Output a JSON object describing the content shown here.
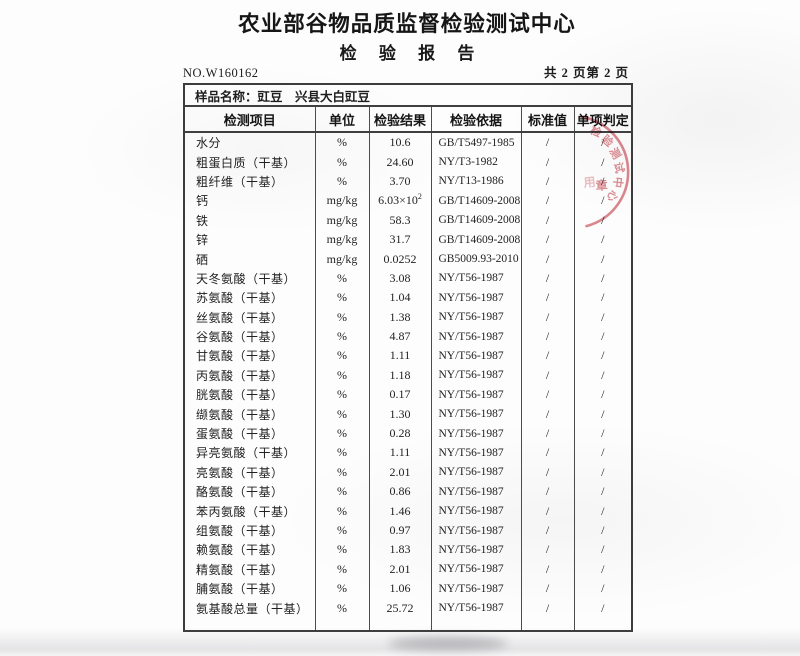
{
  "header": {
    "org_title": "农业部谷物品质监督检验测试中心",
    "report_title": "检 验 报 告",
    "report_no": "NO.W160162",
    "page_info": "共 2 页第 2 页"
  },
  "sample": {
    "line": "样品名称：豇豆　兴县大白豇豆"
  },
  "table": {
    "columns": [
      "检测项目",
      "单位",
      "检验结果",
      "检验依据",
      "标准值",
      "单项判定"
    ],
    "rows": [
      [
        "水分",
        "%",
        "10.6",
        "GB/T5497-1985",
        "/",
        "/"
      ],
      [
        "粗蛋白质（干基）",
        "%",
        "24.60",
        "NY/T3-1982",
        "/",
        "/"
      ],
      [
        "粗纤维（干基）",
        "%",
        "3.70",
        "NY/T13-1986",
        "/",
        "/"
      ],
      [
        "钙",
        "mg/kg",
        "6.03×10²",
        "GB/T14609-2008",
        "/",
        "/"
      ],
      [
        "铁",
        "mg/kg",
        "58.3",
        "GB/T14609-2008",
        "/",
        "/"
      ],
      [
        "锌",
        "mg/kg",
        "31.7",
        "GB/T14609-2008",
        "/",
        "/"
      ],
      [
        "硒",
        "mg/kg",
        "0.0252",
        "GB5009.93-2010",
        "/",
        "/"
      ],
      [
        "天冬氨酸（干基）",
        "%",
        "3.08",
        "NY/T56-1987",
        "/",
        "/"
      ],
      [
        "苏氨酸（干基）",
        "%",
        "1.04",
        "NY/T56-1987",
        "/",
        "/"
      ],
      [
        "丝氨酸（干基）",
        "%",
        "1.38",
        "NY/T56-1987",
        "/",
        "/"
      ],
      [
        "谷氨酸（干基）",
        "%",
        "4.87",
        "NY/T56-1987",
        "/",
        "/"
      ],
      [
        "甘氨酸（干基）",
        "%",
        "1.11",
        "NY/T56-1987",
        "/",
        "/"
      ],
      [
        "丙氨酸（干基）",
        "%",
        "1.18",
        "NY/T56-1987",
        "/",
        "/"
      ],
      [
        "胱氨酸（干基）",
        "%",
        "0.17",
        "NY/T56-1987",
        "/",
        "/"
      ],
      [
        "缬氨酸（干基）",
        "%",
        "1.30",
        "NY/T56-1987",
        "/",
        "/"
      ],
      [
        "蛋氨酸（干基）",
        "%",
        "0.28",
        "NY/T56-1987",
        "/",
        "/"
      ],
      [
        "异亮氨酸（干基）",
        "%",
        "1.11",
        "NY/T56-1987",
        "/",
        "/"
      ],
      [
        "亮氨酸（干基）",
        "%",
        "2.01",
        "NY/T56-1987",
        "/",
        "/"
      ],
      [
        "酪氨酸（干基）",
        "%",
        "0.86",
        "NY/T56-1987",
        "/",
        "/"
      ],
      [
        "苯丙氨酸（干基）",
        "%",
        "1.46",
        "NY/T56-1987",
        "/",
        "/"
      ],
      [
        "组氨酸（干基）",
        "%",
        "0.97",
        "NY/T56-1987",
        "/",
        "/"
      ],
      [
        "赖氨酸（干基）",
        "%",
        "1.83",
        "NY/T56-1987",
        "/",
        "/"
      ],
      [
        "精氨酸（干基）",
        "%",
        "2.01",
        "NY/T56-1987",
        "/",
        "/"
      ],
      [
        "脯氨酸（干基）",
        "%",
        "1.06",
        "NY/T56-1987",
        "/",
        "/"
      ],
      [
        "氨基酸总量（干基）",
        "%",
        "25.72",
        "NY/T56-1987",
        "/",
        "/"
      ]
    ]
  },
  "seal": {
    "arc_chars": [
      "检",
      "验",
      "测",
      "试",
      "中",
      "心"
    ],
    "bottom_chars": [
      "用",
      "章"
    ],
    "color": "#cf5f68"
  }
}
